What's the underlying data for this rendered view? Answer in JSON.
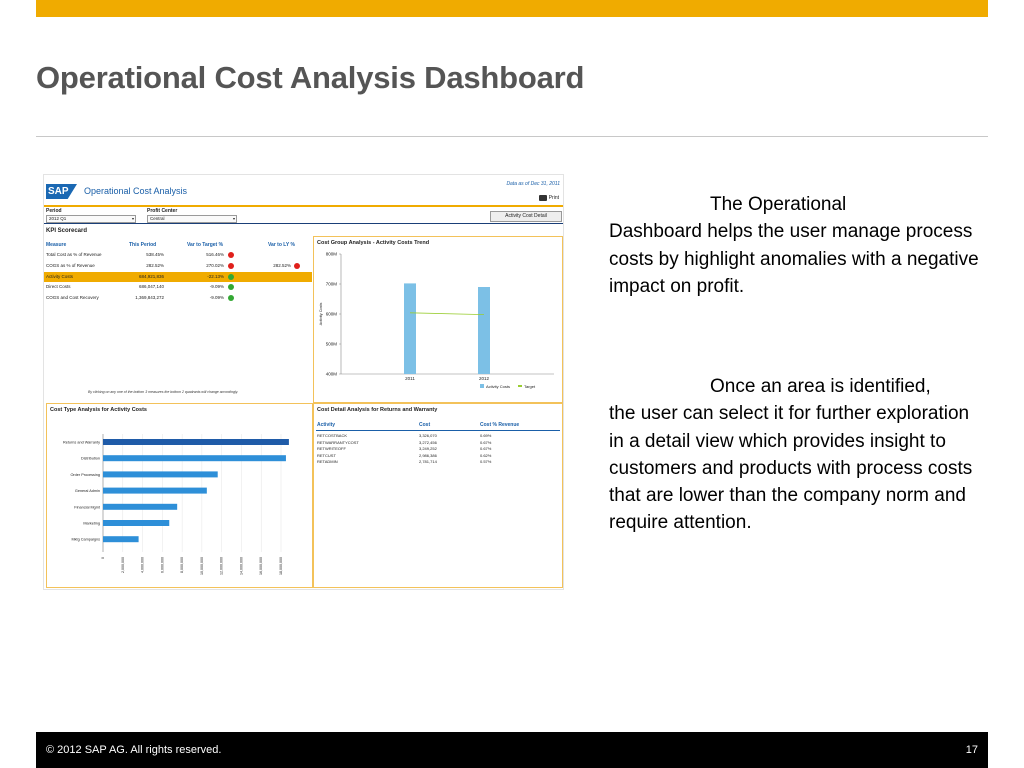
{
  "slide": {
    "title": "Operational Cost Analysis Dashboard",
    "paragraph1_first": "The Operational",
    "paragraph1_rest": "Dashboard helps the user manage process costs by highlight anomalies with a negative impact on profit.",
    "paragraph2_first": "Once an area is identified,",
    "paragraph2_rest": "the user can select it for further exploration in a detail view which provides insight to customers and products with process costs that are lower than the company norm and require attention.",
    "footer_copyright": "© 2012 SAP AG. All rights reserved.",
    "page_number": "17",
    "accent_color": "#f0ab00"
  },
  "dashboard": {
    "logo": "SAP",
    "title": "Operational Cost Analysis",
    "data_as_of": "Data as of Dec 31, 2011",
    "print_label": "Print",
    "period_label": "Period",
    "period_value": "2012 Q1",
    "profit_center_label": "Profit Center",
    "profit_center_value": "Central",
    "detail_button": "Activity Cost Detail",
    "kpi": {
      "title": "KPI Scorecard",
      "headers": [
        "Measure",
        "This Period",
        "Var to Target %",
        "Var to LY %"
      ],
      "rows": [
        {
          "measure": "Total Cost as % of Revenue",
          "period": "538.45%",
          "target": "516.46%",
          "target_status": "red",
          "ly": "",
          "ly_status": ""
        },
        {
          "measure": "COGS as % of Revenue",
          "period": "282.52%",
          "target": "270.02%",
          "target_status": "red",
          "ly": "282.52%",
          "ly_status": "red"
        },
        {
          "measure": "Activity Costs",
          "period": "684,921,836",
          "target": "-22.13%",
          "target_status": "green",
          "ly": "",
          "ly_status": ""
        },
        {
          "measure": "Direct Costs",
          "period": "686,047,140",
          "target": "-9.09%",
          "target_status": "green",
          "ly": "",
          "ly_status": ""
        },
        {
          "measure": "COGS and Cost Recovery",
          "period": "1,369,843,272",
          "target": "-9.09%",
          "target_status": "green",
          "ly": "",
          "ly_status": ""
        }
      ],
      "highlighted_row": 2,
      "footnote": "By clicking on any one of the bottom 3 measures the bottom 2 quadrants will change accordingly."
    }
  },
  "chart_data": [
    {
      "type": "bar",
      "title": "Cost Group Analysis - Activity Costs Trend",
      "categories": [
        "2011",
        "2012"
      ],
      "series": [
        {
          "name": "Activity Costs",
          "values": [
            702,
            690
          ]
        },
        {
          "name": "Target",
          "type": "line",
          "values": [
            604,
            598
          ]
        }
      ],
      "ylabel": "Activity Costs",
      "yticks": [
        "400M",
        "500M",
        "600M",
        "700M",
        "800M"
      ],
      "ylim": [
        400,
        800
      ],
      "colors": {
        "bar": "#7cc0e6",
        "target": "#9acd32"
      },
      "legend": "bottom-right"
    },
    {
      "type": "bar",
      "orientation": "horizontal",
      "title": "Cost Type Analysis for Activity Costs",
      "categories": [
        "Returns and Warranty",
        "Distribution",
        "Order Processing",
        "General Admin",
        "Financial Mgmt",
        "Marketing",
        "Mktg Campaigns"
      ],
      "values": [
        18800000,
        18500000,
        11600000,
        10500000,
        7500000,
        6700000,
        3600000
      ],
      "xticks": [
        "0",
        "2,000,000",
        "4,000,000",
        "6,000,000",
        "8,000,000",
        "10,000,000",
        "12,000,000",
        "14,000,000",
        "16,000,000",
        "18,000,000"
      ],
      "xlim": [
        0,
        18000000
      ],
      "colors": {
        "first": "#1f5ba8",
        "rest": "#2e8fd8"
      }
    }
  ],
  "detail_table": {
    "title": "Cost Detail Analysis for Returns and Warranty",
    "headers": [
      "Activity",
      "Cost",
      "Cost % Revenue"
    ],
    "rows": [
      [
        "RETCOSTBACK",
        "3,326,070",
        "0.69%"
      ],
      [
        "RETWARRANTYCOST",
        "3,272,456",
        "0.67%"
      ],
      [
        "RETWRITEOFF",
        "3,249,252",
        "0.67%"
      ],
      [
        "RETCUST",
        "2,986,386",
        "0.62%"
      ],
      [
        "RETADMIN",
        "2,781,714",
        "0.57%"
      ]
    ]
  }
}
